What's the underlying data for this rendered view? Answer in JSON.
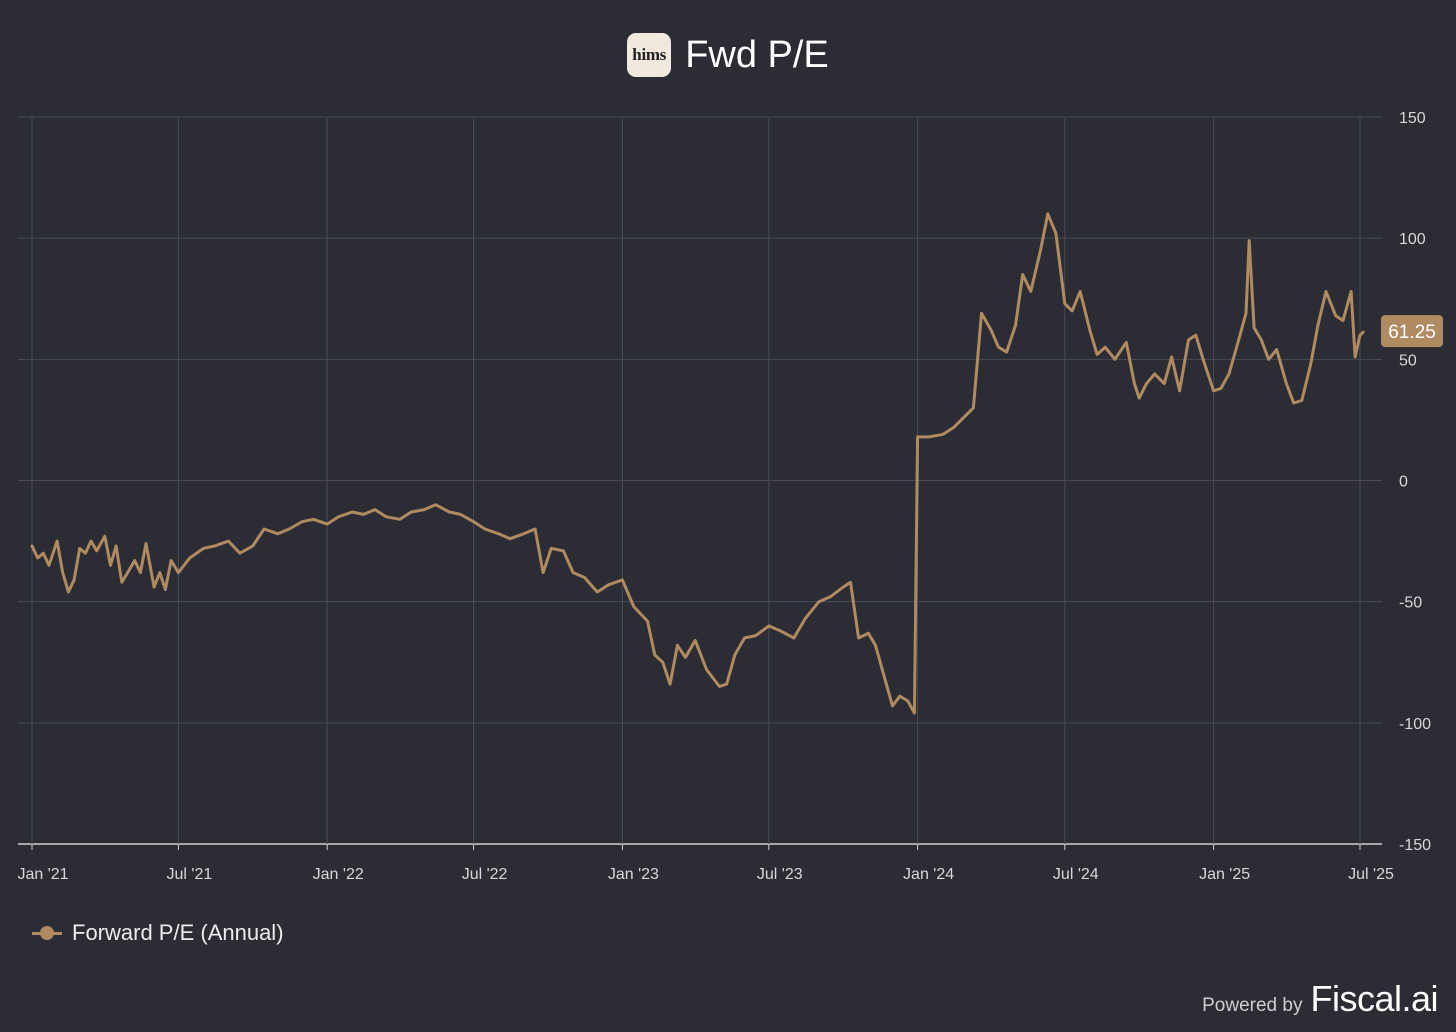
{
  "header": {
    "logo_text": "hims",
    "title": "Fwd P/E"
  },
  "legend": {
    "label": "Forward P/E (Annual)"
  },
  "footer": {
    "powered_by": "Powered by",
    "brand": "Fiscal.ai"
  },
  "colors": {
    "background": "#2b2c34",
    "series": "#b08a60",
    "grid": "#4a4b55",
    "badge_text": "#ffffff"
  },
  "chart_data": {
    "type": "line",
    "title": "Fwd P/E",
    "xlabel": "",
    "ylabel": "",
    "ylim": [
      -150,
      150
    ],
    "y_ticks": [
      150,
      100,
      50,
      0,
      -50,
      -100,
      -150
    ],
    "x_ticks": [
      "Jan '21",
      "Jul '21",
      "Jan '22",
      "Jul '22",
      "Jan '23",
      "Jul '23",
      "Jan '24",
      "Jul '24",
      "Jan '25",
      "Jul '25"
    ],
    "x_tick_dates": [
      "2021-01-01",
      "2021-07-01",
      "2022-01-01",
      "2022-07-01",
      "2023-01-01",
      "2023-07-01",
      "2024-01-01",
      "2024-07-01",
      "2025-01-01",
      "2025-07-01"
    ],
    "grid": true,
    "legend_position": "bottom-left",
    "last_value_label": "61.25",
    "series": [
      {
        "name": "Forward P/E (Annual)",
        "points": [
          [
            "2021-01-01",
            -27
          ],
          [
            "2021-01-08",
            -32
          ],
          [
            "2021-01-15",
            -30
          ],
          [
            "2021-01-22",
            -35
          ],
          [
            "2021-02-01",
            -25
          ],
          [
            "2021-02-08",
            -38
          ],
          [
            "2021-02-15",
            -46
          ],
          [
            "2021-02-22",
            -41
          ],
          [
            "2021-03-01",
            -28
          ],
          [
            "2021-03-08",
            -30
          ],
          [
            "2021-03-15",
            -25
          ],
          [
            "2021-03-22",
            -29
          ],
          [
            "2021-04-01",
            -23
          ],
          [
            "2021-04-08",
            -35
          ],
          [
            "2021-04-15",
            -27
          ],
          [
            "2021-04-22",
            -42
          ],
          [
            "2021-05-01",
            -37
          ],
          [
            "2021-05-08",
            -33
          ],
          [
            "2021-05-15",
            -38
          ],
          [
            "2021-05-22",
            -26
          ],
          [
            "2021-06-01",
            -44
          ],
          [
            "2021-06-08",
            -38
          ],
          [
            "2021-06-15",
            -45
          ],
          [
            "2021-06-22",
            -33
          ],
          [
            "2021-07-01",
            -38
          ],
          [
            "2021-07-15",
            -32
          ],
          [
            "2021-08-01",
            -28
          ],
          [
            "2021-08-15",
            -27
          ],
          [
            "2021-09-01",
            -25
          ],
          [
            "2021-09-15",
            -30
          ],
          [
            "2021-10-01",
            -27
          ],
          [
            "2021-10-15",
            -20
          ],
          [
            "2021-11-01",
            -22
          ],
          [
            "2021-11-15",
            -20
          ],
          [
            "2021-12-01",
            -17
          ],
          [
            "2021-12-15",
            -16
          ],
          [
            "2022-01-01",
            -18
          ],
          [
            "2022-01-15",
            -15
          ],
          [
            "2022-02-01",
            -13
          ],
          [
            "2022-02-15",
            -14
          ],
          [
            "2022-03-01",
            -12
          ],
          [
            "2022-03-15",
            -15
          ],
          [
            "2022-04-01",
            -16
          ],
          [
            "2022-04-15",
            -13
          ],
          [
            "2022-05-01",
            -12
          ],
          [
            "2022-05-15",
            -10
          ],
          [
            "2022-06-01",
            -13
          ],
          [
            "2022-06-15",
            -14
          ],
          [
            "2022-07-01",
            -17
          ],
          [
            "2022-07-15",
            -20
          ],
          [
            "2022-08-01",
            -22
          ],
          [
            "2022-08-15",
            -24
          ],
          [
            "2022-09-01",
            -22
          ],
          [
            "2022-09-15",
            -20
          ],
          [
            "2022-09-25",
            -38
          ],
          [
            "2022-10-05",
            -28
          ],
          [
            "2022-10-20",
            -29
          ],
          [
            "2022-11-01",
            -38
          ],
          [
            "2022-11-15",
            -40
          ],
          [
            "2022-12-01",
            -46
          ],
          [
            "2022-12-15",
            -43
          ],
          [
            "2023-01-01",
            -41
          ],
          [
            "2023-01-15",
            -52
          ],
          [
            "2023-02-01",
            -58
          ],
          [
            "2023-02-10",
            -72
          ],
          [
            "2023-02-20",
            -75
          ],
          [
            "2023-03-01",
            -84
          ],
          [
            "2023-03-10",
            -68
          ],
          [
            "2023-03-20",
            -73
          ],
          [
            "2023-04-01",
            -66
          ],
          [
            "2023-04-15",
            -78
          ],
          [
            "2023-05-01",
            -85
          ],
          [
            "2023-05-10",
            -84
          ],
          [
            "2023-05-20",
            -72
          ],
          [
            "2023-06-01",
            -65
          ],
          [
            "2023-06-15",
            -64
          ],
          [
            "2023-07-01",
            -60
          ],
          [
            "2023-07-15",
            -62
          ],
          [
            "2023-08-01",
            -65
          ],
          [
            "2023-08-15",
            -57
          ],
          [
            "2023-09-01",
            -50
          ],
          [
            "2023-09-15",
            -48
          ],
          [
            "2023-10-01",
            -44
          ],
          [
            "2023-10-10",
            -42
          ],
          [
            "2023-10-20",
            -65
          ],
          [
            "2023-11-01",
            -63
          ],
          [
            "2023-11-10",
            -68
          ],
          [
            "2023-11-20",
            -80
          ],
          [
            "2023-12-01",
            -93
          ],
          [
            "2023-12-10",
            -89
          ],
          [
            "2023-12-20",
            -91
          ],
          [
            "2023-12-28",
            -96
          ],
          [
            "2024-01-01",
            18
          ],
          [
            "2024-01-15",
            18
          ],
          [
            "2024-02-01",
            19
          ],
          [
            "2024-02-15",
            22
          ],
          [
            "2024-03-01",
            27
          ],
          [
            "2024-03-10",
            30
          ],
          [
            "2024-03-20",
            69
          ],
          [
            "2024-04-01",
            62
          ],
          [
            "2024-04-10",
            55
          ],
          [
            "2024-04-20",
            53
          ],
          [
            "2024-05-01",
            64
          ],
          [
            "2024-05-10",
            85
          ],
          [
            "2024-05-20",
            78
          ],
          [
            "2024-06-01",
            95
          ],
          [
            "2024-06-10",
            110
          ],
          [
            "2024-06-20",
            102
          ],
          [
            "2024-07-01",
            73
          ],
          [
            "2024-07-10",
            70
          ],
          [
            "2024-07-20",
            78
          ],
          [
            "2024-08-01",
            62
          ],
          [
            "2024-08-10",
            52
          ],
          [
            "2024-08-20",
            55
          ],
          [
            "2024-09-01",
            50
          ],
          [
            "2024-09-15",
            57
          ],
          [
            "2024-09-25",
            40
          ],
          [
            "2024-10-01",
            34
          ],
          [
            "2024-10-10",
            40
          ],
          [
            "2024-10-20",
            44
          ],
          [
            "2024-11-01",
            40
          ],
          [
            "2024-11-10",
            51
          ],
          [
            "2024-11-20",
            37
          ],
          [
            "2024-12-01",
            58
          ],
          [
            "2024-12-10",
            60
          ],
          [
            "2024-12-20",
            49
          ],
          [
            "2025-01-01",
            37
          ],
          [
            "2025-01-10",
            38
          ],
          [
            "2025-01-20",
            44
          ],
          [
            "2025-02-01",
            58
          ],
          [
            "2025-02-10",
            69
          ],
          [
            "2025-02-14",
            99
          ],
          [
            "2025-02-20",
            63
          ],
          [
            "2025-03-01",
            58
          ],
          [
            "2025-03-10",
            50
          ],
          [
            "2025-03-20",
            54
          ],
          [
            "2025-04-01",
            40
          ],
          [
            "2025-04-10",
            32
          ],
          [
            "2025-04-20",
            33
          ],
          [
            "2025-05-01",
            48
          ],
          [
            "2025-05-10",
            64
          ],
          [
            "2025-05-20",
            78
          ],
          [
            "2025-06-01",
            68
          ],
          [
            "2025-06-10",
            66
          ],
          [
            "2025-06-20",
            78
          ],
          [
            "2025-06-25",
            51
          ],
          [
            "2025-07-01",
            60
          ],
          [
            "2025-07-05",
            61.25
          ]
        ]
      }
    ]
  }
}
